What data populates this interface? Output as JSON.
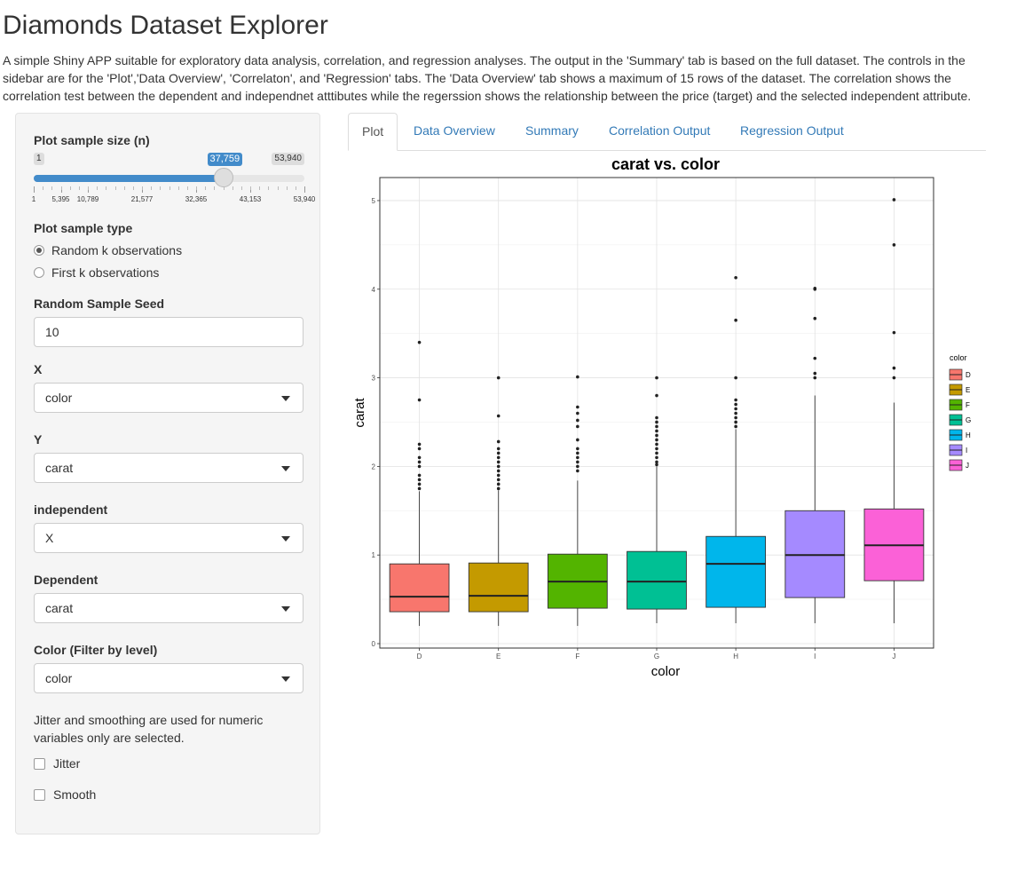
{
  "page": {
    "title": "Diamonds Dataset Explorer",
    "description": "A simple Shiny APP suitable for exploratory data analysis, correlation, and regression analyses. The output in the 'Summary' tab is based on the full dataset. The controls in the sidebar are for the 'Plot','Data Overview', 'Correlaton', and 'Regression' tabs. The 'Data Overview' tab shows a maximum of 15 rows of the dataset. The correlation shows the correlation test between the dependent and independnet atttibutes while the regerssion shows the relationship between the price (target) and the selected independent attribute."
  },
  "sidebar": {
    "sample_size": {
      "label": "Plot sample size (n)",
      "min_label": "1",
      "max_label": "53,940",
      "value_label": "37,759",
      "value": 37759,
      "min": 1,
      "max": 53940,
      "tick_labels": [
        "1",
        "5,395",
        "10,789",
        "21,577",
        "32,365",
        "43,153",
        "53,940"
      ]
    },
    "sample_type": {
      "label": "Plot sample type",
      "options": [
        "Random k observations",
        "First k observations"
      ],
      "selected_index": 0
    },
    "seed": {
      "label": "Random Sample Seed",
      "value": "10"
    },
    "x": {
      "label": "X",
      "value": "color"
    },
    "y": {
      "label": "Y",
      "value": "carat"
    },
    "independent": {
      "label": "independent",
      "value": "X"
    },
    "dependent": {
      "label": "Dependent",
      "value": "carat"
    },
    "color_filter": {
      "label": "Color (Filter by level)",
      "value": "color"
    },
    "note": "Jitter and smoothing are used for numeric variables only are selected.",
    "jitter": {
      "label": "Jitter",
      "checked": false
    },
    "smooth": {
      "label": "Smooth",
      "checked": false
    }
  },
  "tabs": [
    {
      "label": "Plot",
      "active": true
    },
    {
      "label": "Data Overview",
      "active": false
    },
    {
      "label": "Summary",
      "active": false
    },
    {
      "label": "Correlation Output",
      "active": false
    },
    {
      "label": "Regression Output",
      "active": false
    }
  ],
  "chart_data": {
    "type": "boxplot",
    "title": "carat vs. color",
    "xlabel": "color",
    "ylabel": "carat",
    "ylim": [
      0,
      5
    ],
    "yticks": [
      0,
      1,
      2,
      3,
      4,
      5
    ],
    "grid": true,
    "legend_title": "color",
    "legend_position": "right",
    "categories": [
      "D",
      "E",
      "F",
      "G",
      "H",
      "I",
      "J"
    ],
    "colors": [
      "#F8766D",
      "#C49A00",
      "#53B400",
      "#00C094",
      "#00B6EB",
      "#A58AFF",
      "#FB61D7"
    ],
    "boxes": [
      {
        "name": "D",
        "min": 0.2,
        "q1": 0.36,
        "median": 0.53,
        "q3": 0.9,
        "max": 1.72,
        "outliers": [
          1.75,
          1.8,
          1.85,
          1.9,
          2.0,
          2.05,
          2.1,
          2.2,
          2.25,
          2.75,
          3.4
        ]
      },
      {
        "name": "E",
        "min": 0.2,
        "q1": 0.36,
        "median": 0.54,
        "q3": 0.91,
        "max": 1.73,
        "outliers": [
          1.75,
          1.8,
          1.85,
          1.9,
          1.95,
          2.0,
          2.05,
          2.1,
          2.15,
          2.2,
          2.28,
          2.57,
          3.0
        ]
      },
      {
        "name": "F",
        "min": 0.2,
        "q1": 0.4,
        "median": 0.7,
        "q3": 1.01,
        "max": 1.84,
        "outliers": [
          1.95,
          2.0,
          2.05,
          2.1,
          2.15,
          2.2,
          2.3,
          2.45,
          2.52,
          2.6,
          2.67,
          3.01
        ]
      },
      {
        "name": "G",
        "min": 0.23,
        "q1": 0.39,
        "median": 0.7,
        "q3": 1.04,
        "max": 2.0,
        "outliers": [
          2.02,
          2.05,
          2.1,
          2.15,
          2.2,
          2.25,
          2.3,
          2.35,
          2.4,
          2.45,
          2.5,
          2.55,
          2.8,
          3.0
        ]
      },
      {
        "name": "H",
        "min": 0.23,
        "q1": 0.41,
        "median": 0.9,
        "q3": 1.21,
        "max": 2.42,
        "outliers": [
          2.45,
          2.5,
          2.55,
          2.6,
          2.65,
          2.7,
          2.75,
          3.0,
          3.65,
          4.13
        ]
      },
      {
        "name": "I",
        "min": 0.23,
        "q1": 0.52,
        "median": 1.0,
        "q3": 1.5,
        "max": 2.8,
        "outliers": [
          3.0,
          3.05,
          3.22,
          3.67,
          4.0,
          4.01
        ]
      },
      {
        "name": "J",
        "min": 0.23,
        "q1": 0.71,
        "median": 1.11,
        "q3": 1.52,
        "max": 2.72,
        "outliers": [
          3.0,
          3.11,
          3.51,
          4.5,
          5.01
        ]
      }
    ]
  }
}
